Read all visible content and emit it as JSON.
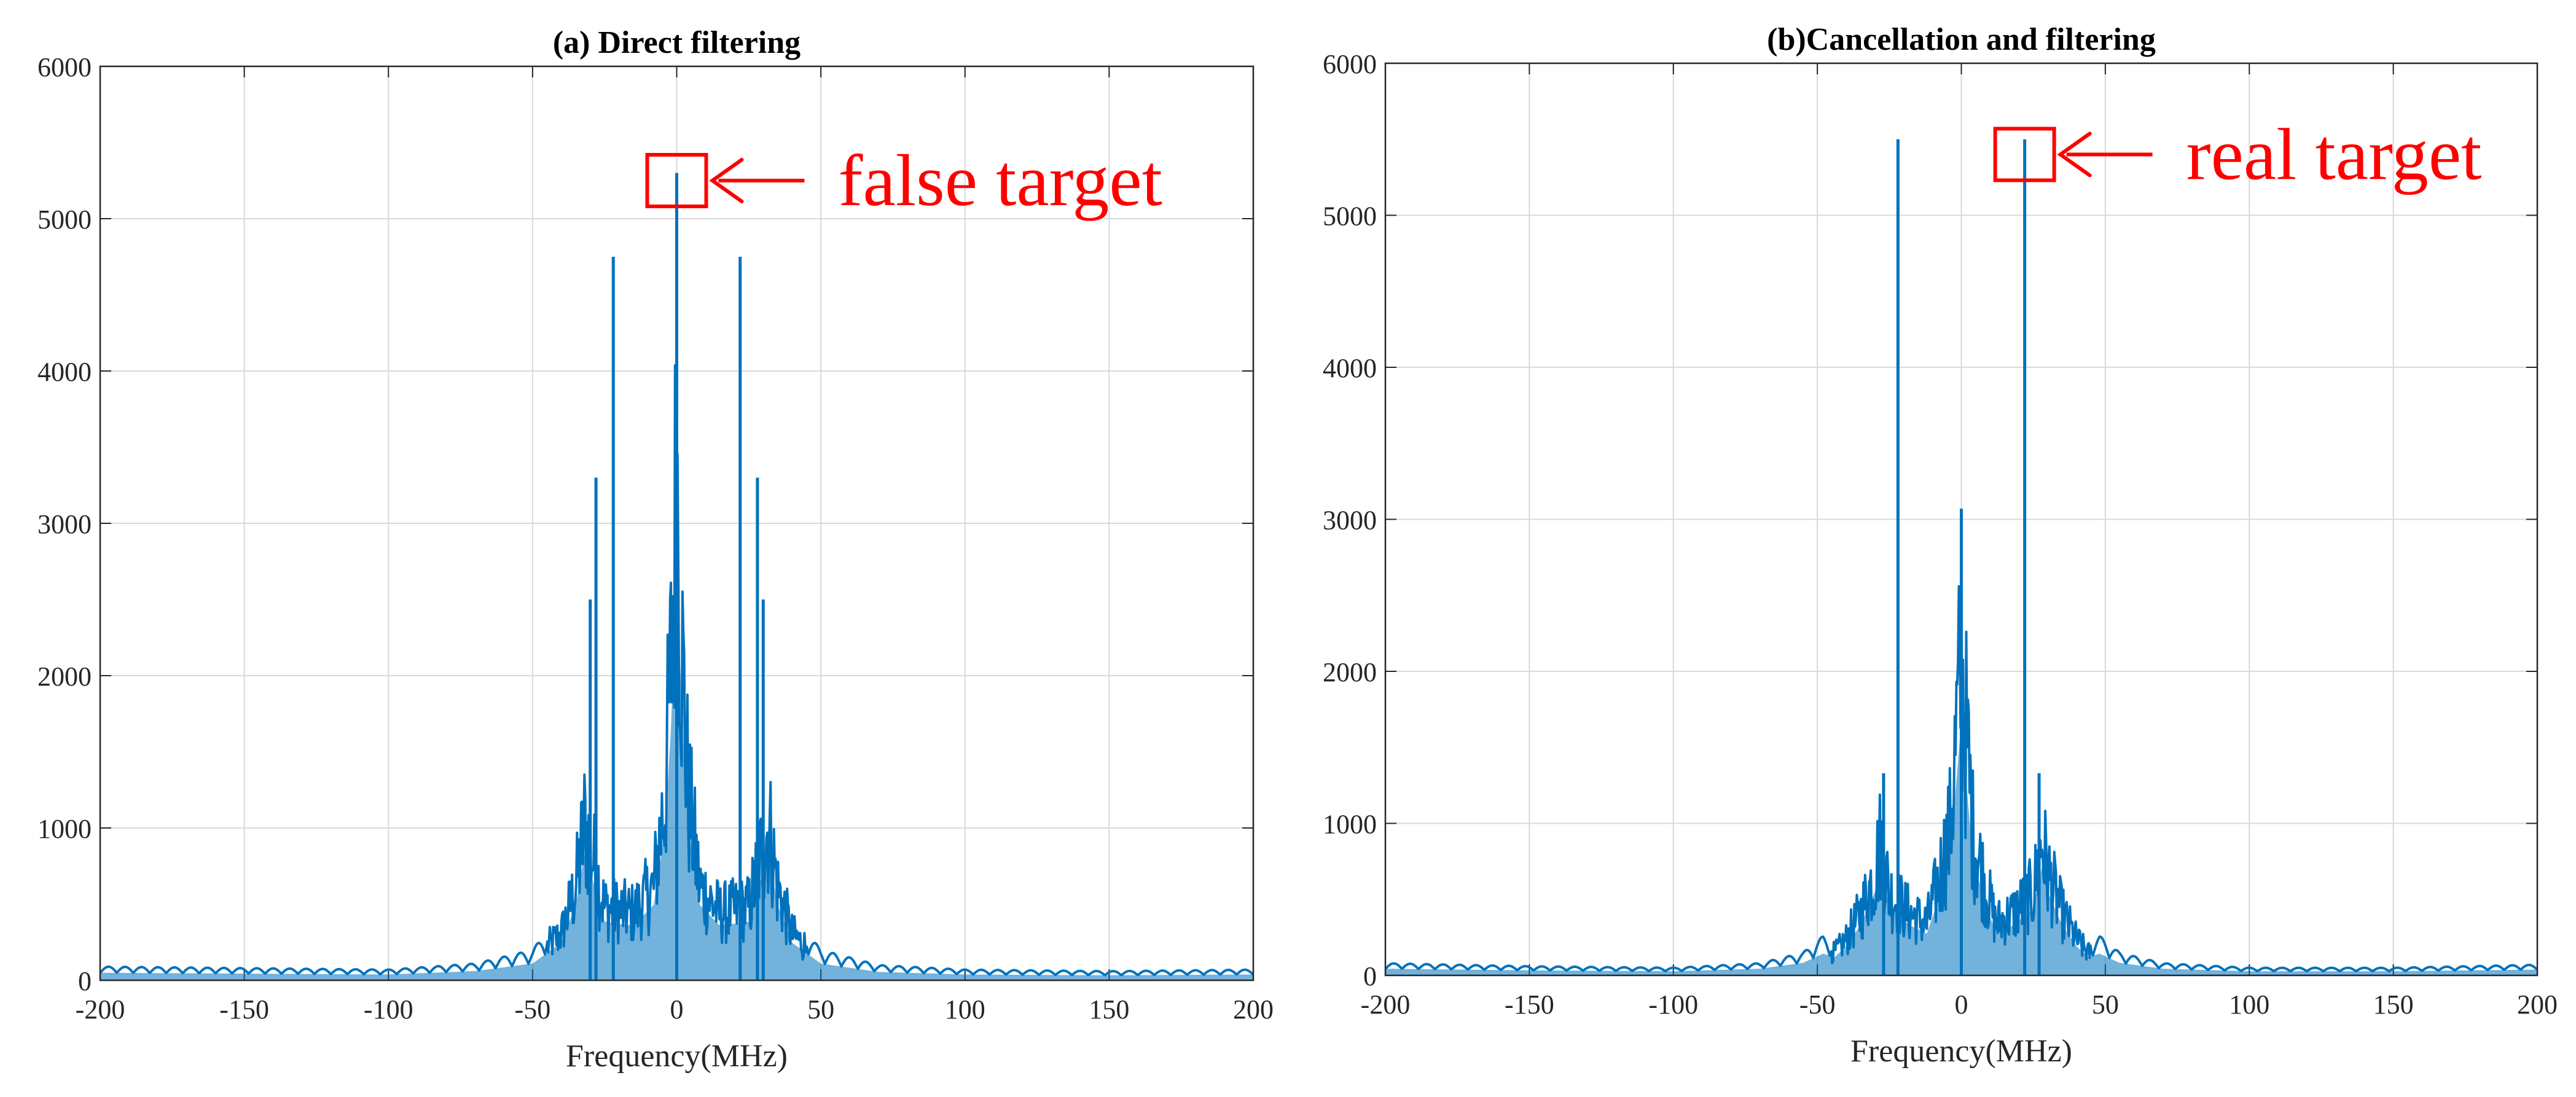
{
  "colors": {
    "series": "#0072bd",
    "annotation": "#ff0000",
    "grid": "#d9d9d9",
    "axis": "#262626"
  },
  "chart_data": [
    {
      "type": "line",
      "title": "(a) Direct filtering",
      "xlabel": "Frequency(MHz)",
      "ylabel": "",
      "xlim": [
        -200,
        200
      ],
      "ylim": [
        0,
        6000
      ],
      "xticks": [
        "-200",
        "-150",
        "-100",
        "-50",
        "0",
        "50",
        "100",
        "150",
        "200"
      ],
      "yticks": [
        "0",
        "1000",
        "2000",
        "3000",
        "4000",
        "5000",
        "6000"
      ],
      "grid": true,
      "annotation": {
        "text": "false target",
        "box_center": [
          0,
          5250
        ]
      },
      "envelope": [
        [
          -200,
          90
        ],
        [
          -150,
          80
        ],
        [
          -100,
          70
        ],
        [
          -70,
          110
        ],
        [
          -50,
          200
        ],
        [
          -40,
          450
        ],
        [
          -35,
          900
        ],
        [
          -32,
          1500
        ],
        [
          -30,
          1300
        ],
        [
          -25,
          700
        ],
        [
          -15,
          650
        ],
        [
          -8,
          900
        ],
        [
          -4,
          1800
        ],
        [
          -2,
          3000
        ],
        [
          0,
          4900
        ],
        [
          2,
          3000
        ],
        [
          4,
          1800
        ],
        [
          8,
          900
        ],
        [
          15,
          650
        ],
        [
          25,
          700
        ],
        [
          30,
          1300
        ],
        [
          32,
          1500
        ],
        [
          35,
          900
        ],
        [
          40,
          450
        ],
        [
          50,
          200
        ],
        [
          70,
          100
        ],
        [
          100,
          70
        ],
        [
          150,
          60
        ],
        [
          200,
          70
        ]
      ],
      "peaks": [
        [
          -30,
          2500
        ],
        [
          -28,
          3300
        ],
        [
          -22,
          4750
        ],
        [
          0,
          5300
        ],
        [
          22,
          4750
        ],
        [
          28,
          3300
        ],
        [
          30,
          2500
        ]
      ]
    },
    {
      "type": "line",
      "title": "(b)Cancellation and filtering",
      "xlabel": "Frequency(MHz)",
      "ylabel": "",
      "xlim": [
        -200,
        200
      ],
      "ylim": [
        0,
        6000
      ],
      "xticks": [
        "-200",
        "-150",
        "-100",
        "-50",
        "0",
        "50",
        "100",
        "150",
        "200"
      ],
      "yticks": [
        "0",
        "1000",
        "2000",
        "3000",
        "4000",
        "5000",
        "6000"
      ],
      "grid": true,
      "annotation": {
        "text": "real target",
        "box_center": [
          22,
          5400
        ]
      },
      "envelope": [
        [
          -200,
          80
        ],
        [
          -150,
          60
        ],
        [
          -100,
          50
        ],
        [
          -70,
          80
        ],
        [
          -55,
          150
        ],
        [
          -48,
          260
        ],
        [
          -44,
          220
        ],
        [
          -40,
          350
        ],
        [
          -35,
          600
        ],
        [
          -30,
          1000
        ],
        [
          -28,
          1300
        ],
        [
          -25,
          800
        ],
        [
          -18,
          600
        ],
        [
          -12,
          500
        ],
        [
          -8,
          900
        ],
        [
          -4,
          1400
        ],
        [
          -2,
          2200
        ],
        [
          0,
          3050
        ],
        [
          2,
          2200
        ],
        [
          4,
          1400
        ],
        [
          8,
          900
        ],
        [
          12,
          500
        ],
        [
          18,
          600
        ],
        [
          25,
          800
        ],
        [
          28,
          1300
        ],
        [
          30,
          1000
        ],
        [
          35,
          600
        ],
        [
          40,
          350
        ],
        [
          44,
          220
        ],
        [
          48,
          260
        ],
        [
          55,
          150
        ],
        [
          70,
          80
        ],
        [
          100,
          50
        ],
        [
          150,
          50
        ],
        [
          200,
          70
        ]
      ],
      "peaks": [
        [
          -27,
          1330
        ],
        [
          -22,
          5500
        ],
        [
          0,
          3070
        ],
        [
          22,
          5500
        ],
        [
          27,
          1330
        ]
      ]
    }
  ]
}
